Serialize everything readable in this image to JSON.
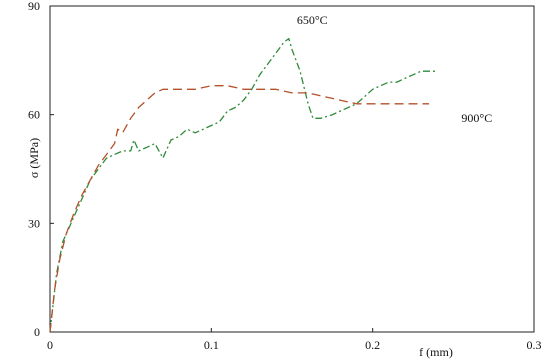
{
  "chart_data": {
    "type": "line",
    "title": "",
    "xlabel": "f (mm)",
    "ylabel": "σ (MPa)",
    "xlim": [
      0,
      0.3
    ],
    "ylim": [
      0,
      90
    ],
    "x_ticks": [
      0,
      0.1,
      0.2,
      0.3
    ],
    "x_tick_labels": [
      "0",
      "0.1",
      "0.2",
      "0.3"
    ],
    "y_ticks": [
      0,
      30,
      60,
      90
    ],
    "y_tick_labels": [
      "0",
      "30",
      "60",
      "90"
    ],
    "grid": false,
    "series": [
      {
        "name": "650°C",
        "color": "#2e8b3a",
        "style": "dash-dot",
        "points": [
          [
            0,
            0
          ],
          [
            0.004,
            16
          ],
          [
            0.008,
            25
          ],
          [
            0.012,
            29
          ],
          [
            0.016,
            33
          ],
          [
            0.02,
            37
          ],
          [
            0.025,
            42
          ],
          [
            0.03,
            45
          ],
          [
            0.035,
            48
          ],
          [
            0.04,
            49
          ],
          [
            0.045,
            50
          ],
          [
            0.05,
            50
          ],
          [
            0.052,
            53
          ],
          [
            0.055,
            50
          ],
          [
            0.06,
            51
          ],
          [
            0.065,
            52
          ],
          [
            0.07,
            48
          ],
          [
            0.075,
            53
          ],
          [
            0.08,
            54
          ],
          [
            0.085,
            56
          ],
          [
            0.09,
            55
          ],
          [
            0.095,
            56
          ],
          [
            0.1,
            57
          ],
          [
            0.105,
            58
          ],
          [
            0.11,
            61
          ],
          [
            0.115,
            62
          ],
          [
            0.12,
            64
          ],
          [
            0.125,
            67
          ],
          [
            0.13,
            71
          ],
          [
            0.135,
            74
          ],
          [
            0.14,
            77
          ],
          [
            0.145,
            80
          ],
          [
            0.148,
            81
          ],
          [
            0.15,
            78
          ],
          [
            0.155,
            72
          ],
          [
            0.16,
            63
          ],
          [
            0.163,
            59
          ],
          [
            0.168,
            59
          ],
          [
            0.175,
            60
          ],
          [
            0.18,
            61
          ],
          [
            0.185,
            62
          ],
          [
            0.19,
            63
          ],
          [
            0.195,
            65
          ],
          [
            0.2,
            67
          ],
          [
            0.205,
            68
          ],
          [
            0.21,
            69
          ],
          [
            0.215,
            69
          ],
          [
            0.22,
            70
          ],
          [
            0.225,
            71
          ],
          [
            0.23,
            72
          ],
          [
            0.235,
            72
          ],
          [
            0.24,
            72
          ]
        ]
      },
      {
        "name": "900°C",
        "color": "#b5502a",
        "style": "dashed",
        "points": [
          [
            0,
            0
          ],
          [
            0.003,
            12
          ],
          [
            0.006,
            20
          ],
          [
            0.01,
            27
          ],
          [
            0.015,
            33
          ],
          [
            0.02,
            38
          ],
          [
            0.025,
            42
          ],
          [
            0.03,
            46
          ],
          [
            0.035,
            49
          ],
          [
            0.04,
            52
          ],
          [
            0.042,
            56
          ],
          [
            0.045,
            55
          ],
          [
            0.05,
            59
          ],
          [
            0.055,
            62
          ],
          [
            0.06,
            64
          ],
          [
            0.065,
            66
          ],
          [
            0.07,
            67
          ],
          [
            0.08,
            67
          ],
          [
            0.09,
            67
          ],
          [
            0.1,
            68
          ],
          [
            0.11,
            68
          ],
          [
            0.12,
            67
          ],
          [
            0.13,
            67
          ],
          [
            0.14,
            67
          ],
          [
            0.15,
            66
          ],
          [
            0.16,
            66
          ],
          [
            0.17,
            65
          ],
          [
            0.18,
            64
          ],
          [
            0.19,
            63
          ],
          [
            0.2,
            63
          ],
          [
            0.21,
            63
          ],
          [
            0.22,
            63
          ],
          [
            0.23,
            63
          ],
          [
            0.235,
            63
          ]
        ]
      }
    ],
    "annotations": [
      {
        "text": "650°C",
        "x": 0.153,
        "y": 85
      },
      {
        "text": "900°C",
        "x": 0.255,
        "y": 58
      }
    ]
  }
}
